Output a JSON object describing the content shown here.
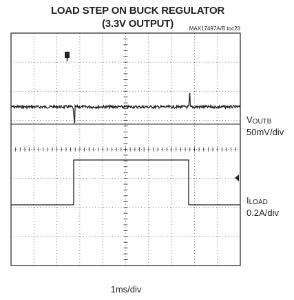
{
  "header": {
    "title_lines": [
      "LOAD STEP ON BUCK REGULATOR",
      "(3.3V OUTPUT)"
    ],
    "tag": "MAX17497A/B toc23"
  },
  "channels": [
    {
      "label": {
        "main": "V",
        "sub": "OUTB"
      },
      "scale": "50mV/div"
    },
    {
      "label": {
        "main": "I",
        "sub": "LOAD"
      },
      "scale": "0.2A/div"
    }
  ],
  "time_scale": "1ms/div"
}
